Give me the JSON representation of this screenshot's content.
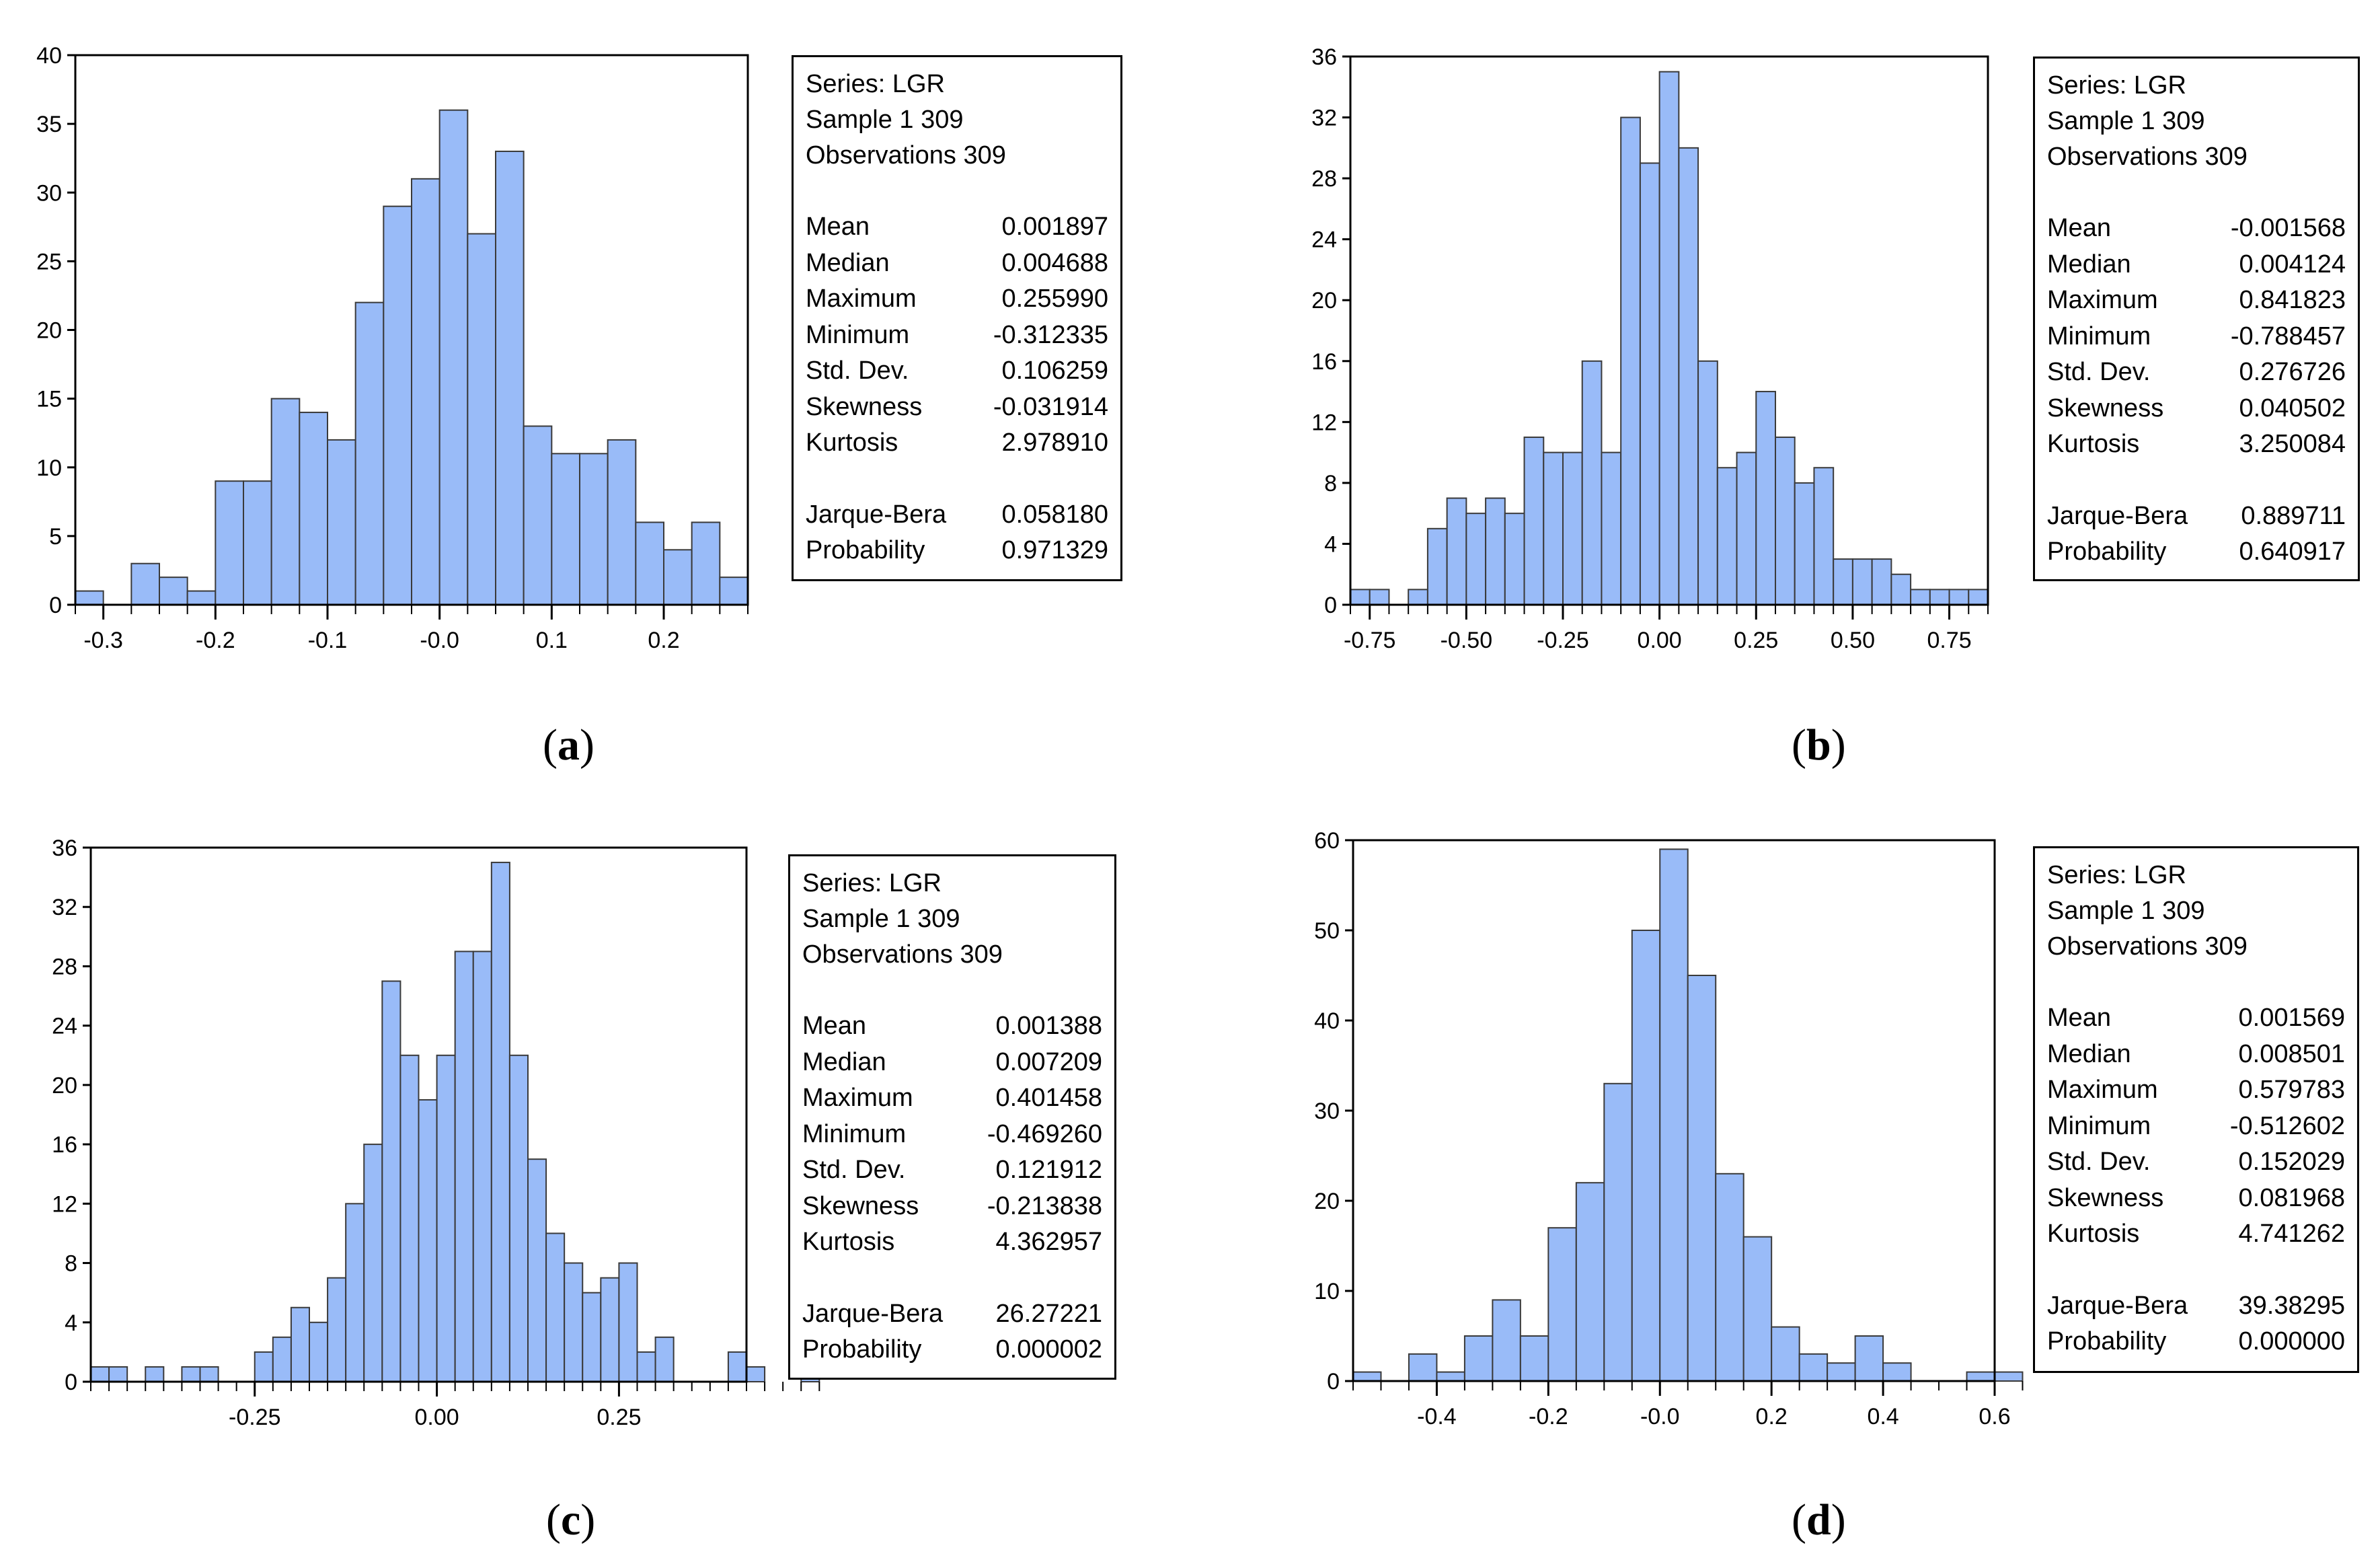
{
  "colors": {
    "bar_fill": "#99BBF8",
    "bar_stroke": "#3a3a3a",
    "axis": "#000000"
  },
  "panels": [
    {
      "id": "a",
      "caption_open": "(",
      "caption_letter": "a",
      "caption_close": ")",
      "stats": {
        "series": "Series: LGR",
        "sample": "Sample 1 309",
        "observations": "Observations 309",
        "rows": [
          {
            "label": "Mean",
            "value": "0.001897"
          },
          {
            "label": "Median",
            "value": "0.004688"
          },
          {
            "label": "Maximum",
            "value": "0.255990"
          },
          {
            "label": "Minimum",
            "value": "-0.312335"
          },
          {
            "label": "Std. Dev.",
            "value": "0.106259"
          },
          {
            "label": "Skewness",
            "value": "-0.031914"
          },
          {
            "label": "Kurtosis",
            "value": "2.978910"
          }
        ],
        "rows2": [
          {
            "label": "Jarque-Bera",
            "value": "0.058180"
          },
          {
            "label": "Probability",
            "value": "0.971329"
          }
        ]
      }
    },
    {
      "id": "b",
      "caption_open": "(",
      "caption_letter": "b",
      "caption_close": ")",
      "stats": {
        "series": "Series: LGR",
        "sample": "Sample 1 309",
        "observations": "Observations 309",
        "rows": [
          {
            "label": "Mean",
            "value": "-0.001568"
          },
          {
            "label": "Median",
            "value": "0.004124"
          },
          {
            "label": "Maximum",
            "value": "0.841823"
          },
          {
            "label": "Minimum",
            "value": "-0.788457"
          },
          {
            "label": "Std. Dev.",
            "value": "0.276726"
          },
          {
            "label": "Skewness",
            "value": "0.040502"
          },
          {
            "label": "Kurtosis",
            "value": "3.250084"
          }
        ],
        "rows2": [
          {
            "label": "Jarque-Bera",
            "value": "0.889711"
          },
          {
            "label": "Probability",
            "value": "0.640917"
          }
        ]
      }
    },
    {
      "id": "c",
      "caption_open": "(",
      "caption_letter": "c",
      "caption_close": ")",
      "stats": {
        "series": "Series: LGR",
        "sample": "Sample 1 309",
        "observations": "Observations 309",
        "rows": [
          {
            "label": "Mean",
            "value": "0.001388"
          },
          {
            "label": "Median",
            "value": "0.007209"
          },
          {
            "label": "Maximum",
            "value": "0.401458"
          },
          {
            "label": "Minimum",
            "value": "-0.469260"
          },
          {
            "label": "Std. Dev.",
            "value": "0.121912"
          },
          {
            "label": "Skewness",
            "value": "-0.213838"
          },
          {
            "label": "Kurtosis",
            "value": "4.362957"
          }
        ],
        "rows2": [
          {
            "label": "Jarque-Bera",
            "value": "26.27221"
          },
          {
            "label": "Probability",
            "value": "0.000002"
          }
        ]
      }
    },
    {
      "id": "d",
      "caption_open": "(",
      "caption_letter": "d",
      "caption_close": ")",
      "stats": {
        "series": "Series: LGR",
        "sample": "Sample 1 309",
        "observations": "Observations 309",
        "rows": [
          {
            "label": "Mean",
            "value": "0.001569"
          },
          {
            "label": "Median",
            "value": "0.008501"
          },
          {
            "label": "Maximum",
            "value": "0.579783"
          },
          {
            "label": "Minimum",
            "value": "-0.512602"
          },
          {
            "label": "Std. Dev.",
            "value": "0.152029"
          },
          {
            "label": "Skewness",
            "value": "0.081968"
          },
          {
            "label": "Kurtosis",
            "value": "4.741262"
          }
        ],
        "rows2": [
          {
            "label": "Jarque-Bera",
            "value": "39.38295"
          },
          {
            "label": "Probability",
            "value": "0.000000"
          }
        ]
      }
    }
  ],
  "chart_data": [
    {
      "panel": "a",
      "type": "bar",
      "title": "",
      "xlim": [
        -0.325,
        0.275
      ],
      "ylim": [
        0,
        40
      ],
      "bin_start": -0.325,
      "bin_width": 0.025,
      "x_tick_values": [
        -0.3,
        -0.2,
        -0.1,
        0.0,
        0.1,
        0.2
      ],
      "x_tick_labels": [
        "-0.3",
        "-0.2",
        "-0.1",
        "-0.0",
        "0.1",
        "0.2"
      ],
      "y_tick_values": [
        0,
        5,
        10,
        15,
        20,
        25,
        30,
        35,
        40
      ],
      "y_tick_labels": [
        "0",
        "5",
        "10",
        "15",
        "20",
        "25",
        "30",
        "35",
        "40"
      ],
      "values": [
        1,
        0,
        3,
        2,
        1,
        9,
        9,
        15,
        14,
        12,
        22,
        29,
        31,
        36,
        27,
        33,
        13,
        11,
        11,
        12,
        6,
        4,
        6,
        2
      ]
    },
    {
      "panel": "b",
      "type": "bar",
      "title": "",
      "xlim": [
        -0.8,
        0.85
      ],
      "ylim": [
        0,
        36
      ],
      "bin_start": -0.8,
      "bin_width": 0.05,
      "x_tick_values": [
        -0.75,
        -0.5,
        -0.25,
        0.0,
        0.25,
        0.5,
        0.75
      ],
      "x_tick_labels": [
        "-0.75",
        "-0.50",
        "-0.25",
        "0.00",
        "0.25",
        "0.50",
        "0.75"
      ],
      "y_tick_values": [
        0,
        4,
        8,
        12,
        16,
        20,
        24,
        28,
        32,
        36
      ],
      "y_tick_labels": [
        "0",
        "4",
        "8",
        "12",
        "16",
        "20",
        "24",
        "28",
        "32",
        "36"
      ],
      "values": [
        1,
        1,
        0,
        1,
        5,
        7,
        6,
        7,
        6,
        11,
        10,
        10,
        16,
        10,
        32,
        29,
        35,
        30,
        16,
        9,
        10,
        14,
        11,
        8,
        9,
        3,
        3,
        3,
        2,
        1,
        1,
        1,
        1
      ]
    },
    {
      "panel": "c",
      "type": "bar",
      "title": "",
      "xlim": [
        -0.475,
        0.425
      ],
      "ylim": [
        0,
        36
      ],
      "bin_start": -0.475,
      "bin_width": 0.025,
      "x_tick_values": [
        -0.25,
        0.0,
        0.25
      ],
      "x_tick_labels": [
        "-0.25",
        "0.00",
        "0.25"
      ],
      "y_tick_values": [
        0,
        4,
        8,
        12,
        16,
        20,
        24,
        28,
        32,
        36
      ],
      "y_tick_labels": [
        "0",
        "4",
        "8",
        "12",
        "16",
        "20",
        "24",
        "28",
        "32",
        "36"
      ],
      "values": [
        1,
        1,
        0,
        1,
        0,
        1,
        1,
        0,
        0,
        2,
        3,
        5,
        4,
        7,
        12,
        16,
        27,
        22,
        19,
        22,
        29,
        29,
        35,
        22,
        15,
        10,
        8,
        6,
        7,
        8,
        2,
        3,
        0,
        0,
        0,
        2,
        1,
        0,
        0,
        1
      ]
    },
    {
      "panel": "d",
      "type": "bar",
      "title": "",
      "xlim": [
        -0.55,
        0.6
      ],
      "ylim": [
        0,
        60
      ],
      "bin_start": -0.55,
      "bin_width": 0.05,
      "x_tick_values": [
        -0.4,
        -0.2,
        0.0,
        0.2,
        0.4,
        0.6
      ],
      "x_tick_labels": [
        "-0.4",
        "-0.2",
        "-0.0",
        "0.2",
        "0.4",
        "0.6"
      ],
      "y_tick_values": [
        0,
        10,
        20,
        30,
        40,
        50,
        60
      ],
      "y_tick_labels": [
        "0",
        "10",
        "20",
        "30",
        "40",
        "50",
        "60"
      ],
      "values": [
        1,
        0,
        3,
        1,
        5,
        9,
        5,
        17,
        22,
        33,
        50,
        59,
        45,
        23,
        16,
        6,
        3,
        2,
        5,
        2,
        0,
        0,
        1,
        1
      ]
    }
  ]
}
